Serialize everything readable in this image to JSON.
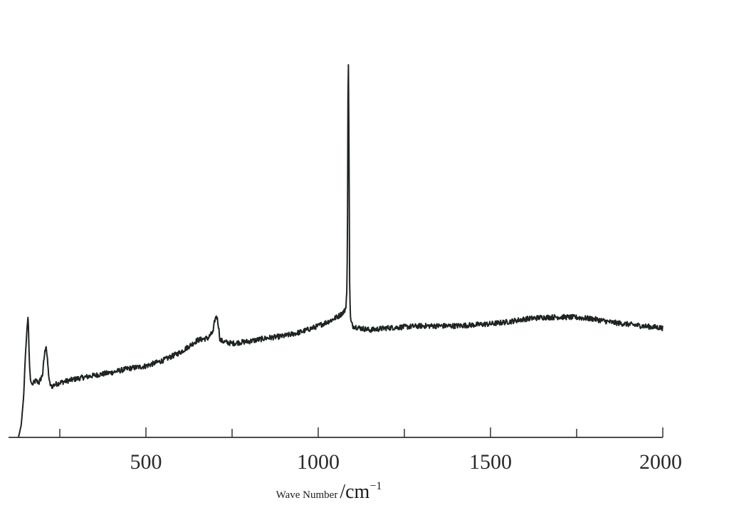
{
  "chart_data": {
    "type": "line",
    "title": "",
    "xlabel": "Wave Number",
    "xlabel_unit": "/cm",
    "xlabel_unit_exponent": "−1",
    "ylabel": "",
    "xlim": [
      100,
      2000
    ],
    "ylim": [
      0,
      100
    ],
    "grid": false,
    "legend": "none",
    "line_color": "#1e2421",
    "x_ticks_major": [
      500,
      1000,
      1500,
      2000
    ],
    "x_ticks_minor": [
      250,
      750,
      1250,
      1750
    ],
    "x_tick_labels": [
      "500",
      "1000",
      "1500",
      "2000"
    ],
    "series": [
      {
        "x": [
          130,
          138,
          145,
          150,
          155,
          158,
          160,
          162,
          165,
          170,
          175,
          180,
          190,
          200,
          205,
          210,
          215,
          220,
          225,
          235,
          250,
          300,
          350,
          400,
          450,
          500,
          550,
          600,
          650,
          680,
          695,
          700,
          705,
          710,
          715,
          730,
          750,
          800,
          850,
          900,
          950,
          1000,
          1040,
          1060,
          1075,
          1080,
          1083,
          1085,
          1087,
          1089,
          1091,
          1093,
          1095,
          1100,
          1120,
          1150,
          1200,
          1300,
          1400,
          1500,
          1550,
          1600,
          1650,
          1700,
          1750,
          1800,
          1850,
          1900,
          1950,
          2000
        ],
        "y": [
          0,
          3,
          10,
          20,
          27,
          30,
          24,
          18,
          14,
          13,
          13.5,
          14,
          13.5,
          15.5,
          20,
          23,
          18,
          13.5,
          12.5,
          13,
          13.5,
          14.5,
          15.3,
          16,
          17,
          17.6,
          19,
          21,
          24,
          24.5,
          26,
          29,
          30,
          28,
          24,
          23.5,
          23.2,
          23.7,
          24.5,
          25,
          26,
          27.5,
          29,
          30,
          31,
          32,
          36,
          50,
          100,
          75,
          40,
          30,
          28.5,
          27.5,
          27,
          26.5,
          27,
          27.5,
          27.5,
          28,
          28.5,
          29.2,
          29.6,
          29.7,
          29.6,
          29.2,
          28.4,
          27.9,
          27.4,
          27
        ]
      }
    ]
  }
}
